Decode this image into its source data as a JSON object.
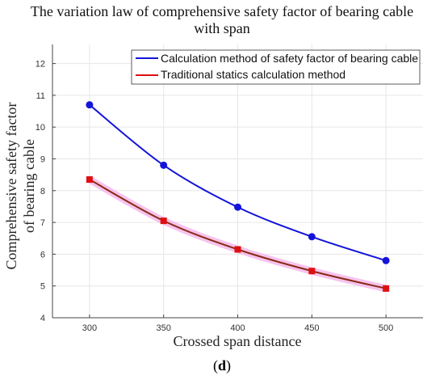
{
  "chart_data": {
    "type": "line",
    "title_lines": [
      "The variation law of comprehensive safety factor of bearing cable",
      "with span"
    ],
    "xlabel": "Crossed span distance",
    "ylabel_lines": [
      "Comprehensive safety factor",
      "of bearing cable"
    ],
    "x": [
      300,
      350,
      400,
      450,
      500
    ],
    "xlim": [
      275,
      525
    ],
    "ylim": [
      4,
      12.6
    ],
    "xticks": [
      300,
      350,
      400,
      450,
      500
    ],
    "yticks": [
      4,
      5,
      6,
      7,
      8,
      9,
      10,
      11,
      12
    ],
    "grid": true,
    "legend_position": "top-right",
    "series": [
      {
        "name": "Calculation method of safety factor of bearing cable",
        "values": [
          10.7,
          8.8,
          7.48,
          6.55,
          5.8
        ],
        "color": "#1414d9",
        "marker": "circle"
      },
      {
        "name": "Traditional statics calculation method",
        "values": [
          8.35,
          7.05,
          6.15,
          5.47,
          4.92
        ],
        "color": "#e01010",
        "line_color": "#8b2a12",
        "marker": "square"
      }
    ],
    "band_color": "#f5b8ec"
  },
  "caption": {
    "open": "(",
    "letter": "d",
    "close": ")"
  }
}
